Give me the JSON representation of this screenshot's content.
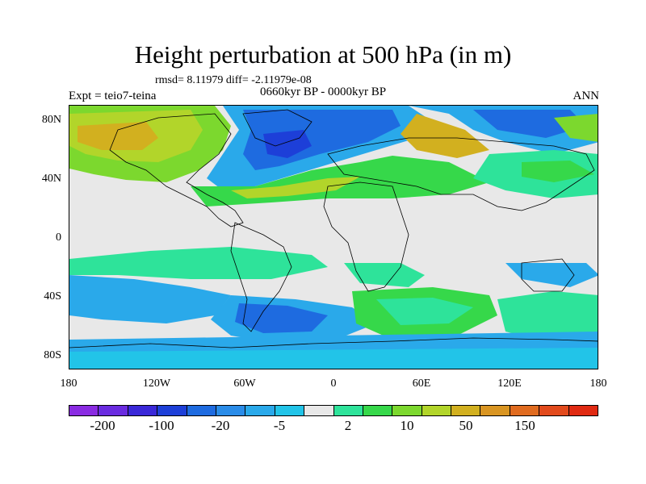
{
  "title": "Height perturbation at 500 hPa (in m)",
  "subtitle": "rmsd= 8.11979 diff= -2.11979e-08",
  "left_label": "Expt = teio7-teina",
  "center_label": "0660kyr BP - 0000kyr BP",
  "right_label": "ANN",
  "y_ticks": [
    "80N",
    "40N",
    "0",
    "40S",
    "80S"
  ],
  "x_ticks": [
    "180",
    "120W",
    "60W",
    "0",
    "60E",
    "120E",
    "180"
  ],
  "colorbar": {
    "colors": [
      "#8a2be2",
      "#6a2be0",
      "#3a28d8",
      "#1d3fd8",
      "#1e6be0",
      "#2a8ce8",
      "#2aa9ea",
      "#22c4e8",
      "#e8e8e8",
      "#2ee39a",
      "#36d84a",
      "#7cd82e",
      "#b2d52a",
      "#d2b01f",
      "#d99522",
      "#e06b1f",
      "#e24a1c",
      "#e02a12"
    ],
    "labels": [
      "-200",
      "-100",
      "-20",
      "-5",
      "2",
      "10",
      "50",
      "150"
    ]
  }
}
